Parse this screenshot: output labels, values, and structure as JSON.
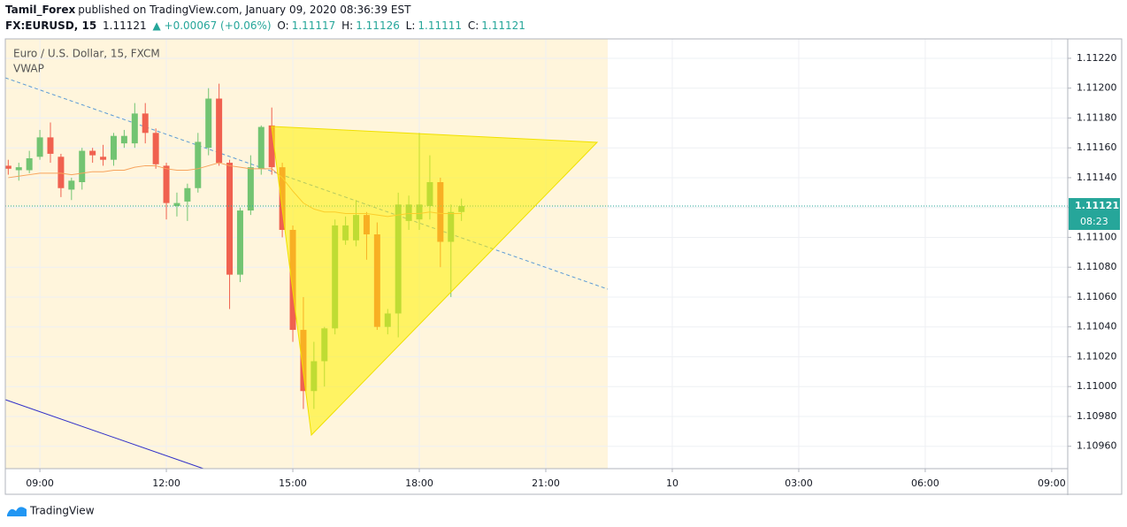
{
  "header": {
    "publisher": "Tamil_Forex",
    "published": "published on TradingView.com, January 09, 2020 08:36:39 EST"
  },
  "symbol_bar": {
    "symbol": "FX:EURUSD, 15",
    "price": "1.11121",
    "change": "▲ +0.00067 (+0.06%)",
    "o_label": "O:",
    "o": "1.11117",
    "h_label": "H:",
    "h": "1.11126",
    "l_label": "L:",
    "l": "1.11111",
    "c_label": "C:",
    "c": "1.11121"
  },
  "chart_data": {
    "type": "candlestick",
    "title": "Euro / U.S. Dollar, 15, FXCM",
    "x": [
      8.25,
      8.5,
      8.75,
      9,
      9.25,
      9.5,
      9.75,
      10,
      10.25,
      10.5,
      10.75,
      11,
      11.25,
      11.5,
      11.75,
      12,
      12.25,
      12.5,
      12.75,
      13,
      13.25,
      13.5,
      13.75,
      14,
      14.25,
      14.5,
      14.75,
      15,
      15.25,
      15.5,
      15.75,
      16,
      16.25,
      16.5,
      16.75,
      17,
      17.25,
      17.5,
      17.75,
      18,
      18.25,
      18.5,
      18.75,
      19
    ],
    "open": [
      1.11148,
      1.11145,
      1.11145,
      1.11154,
      1.11167,
      1.11154,
      1.11132,
      1.11137,
      1.11158,
      1.11154,
      1.11152,
      1.11163,
      1.11163,
      1.11183,
      1.1117,
      1.11148,
      1.11121,
      1.11124,
      1.11133,
      1.1116,
      1.11193,
      1.1115,
      1.11075,
      1.11118,
      1.11146,
      1.11175,
      1.11147,
      1.11105,
      1.11038,
      1.10997,
      1.11017,
      1.11039,
      1.11098,
      1.11098,
      1.11115,
      1.11102,
      1.1104,
      1.11049,
      1.11111,
      1.11112,
      1.11121,
      1.11137,
      1.11097,
      1.11117
    ],
    "high": [
      1.11152,
      1.1115,
      1.11158,
      1.11172,
      1.11177,
      1.11156,
      1.1114,
      1.1116,
      1.1116,
      1.11162,
      1.1117,
      1.11172,
      1.1119,
      1.1119,
      1.11173,
      1.1115,
      1.1113,
      1.11136,
      1.1117,
      1.112,
      1.11203,
      1.11152,
      1.1112,
      1.11155,
      1.11175,
      1.11187,
      1.1115,
      1.11108,
      1.1106,
      1.1103,
      1.1104,
      1.11112,
      1.11114,
      1.11125,
      1.11117,
      1.1111,
      1.11052,
      1.1113,
      1.11128,
      1.1117,
      1.11155,
      1.1114,
      1.11122,
      1.11126
    ],
    "low": [
      1.11142,
      1.11138,
      1.11143,
      1.11152,
      1.1115,
      1.11127,
      1.11125,
      1.11132,
      1.1115,
      1.11148,
      1.11148,
      1.1116,
      1.1116,
      1.11163,
      1.11146,
      1.11112,
      1.11114,
      1.11111,
      1.1113,
      1.11155,
      1.11148,
      1.11052,
      1.1107,
      1.11115,
      1.11142,
      1.11142,
      1.111,
      1.1103,
      1.10985,
      1.10985,
      1.11,
      1.11035,
      1.11095,
      1.11094,
      1.11085,
      1.11038,
      1.11035,
      1.11033,
      1.11105,
      1.11105,
      1.11112,
      1.1108,
      1.1106,
      1.11111
    ],
    "close": [
      1.11146,
      1.11147,
      1.11153,
      1.11167,
      1.11156,
      1.11133,
      1.11138,
      1.11158,
      1.11155,
      1.11152,
      1.11168,
      1.11168,
      1.11183,
      1.1117,
      1.11149,
      1.11123,
      1.11123,
      1.11133,
      1.11164,
      1.11193,
      1.1115,
      1.11075,
      1.11118,
      1.11147,
      1.11174,
      1.11147,
      1.11105,
      1.11038,
      1.10997,
      1.11017,
      1.11039,
      1.11108,
      1.11108,
      1.11115,
      1.11102,
      1.1104,
      1.11049,
      1.11122,
      1.11122,
      1.11122,
      1.11137,
      1.11097,
      1.11117,
      1.11121
    ],
    "up_color": "#72c472",
    "down_color": "#f0614f",
    "series": [
      {
        "name": "VWAP",
        "color": "#f7a35c",
        "values": [
          1.1114,
          1.11141,
          1.11142,
          1.11143,
          1.11143,
          1.11143,
          1.11142,
          1.11143,
          1.11144,
          1.11144,
          1.11145,
          1.11145,
          1.11147,
          1.11148,
          1.11148,
          1.11146,
          1.11145,
          1.11145,
          1.11146,
          1.11148,
          1.1115,
          1.11148,
          1.11147,
          1.11146,
          1.11146,
          1.11146,
          1.1114,
          1.11131,
          1.11123,
          1.11119,
          1.11117,
          1.11117,
          1.11116,
          1.11116,
          1.11116,
          1.11115,
          1.11114,
          1.11115,
          1.11116,
          1.11116,
          1.11117,
          1.11116,
          1.11116,
          1.11116
        ]
      }
    ],
    "xlim": [
      8.18,
      33.38
    ],
    "xticks": [
      {
        "value": 9,
        "label": "09:00"
      },
      {
        "value": 12,
        "label": "12:00"
      },
      {
        "value": 15,
        "label": "15:00"
      },
      {
        "value": 18,
        "label": "18:00"
      },
      {
        "value": 21,
        "label": "21:00"
      },
      {
        "value": 24,
        "label": "10"
      },
      {
        "value": 27,
        "label": "03:00"
      },
      {
        "value": 30,
        "label": "06:00"
      },
      {
        "value": 33,
        "label": "09:00"
      }
    ],
    "ylim": [
      1.10945,
      1.11233
    ],
    "yticks": [
      {
        "value": 1.1096,
        "label": "1.10960"
      },
      {
        "value": 1.1098,
        "label": "1.10980"
      },
      {
        "value": 1.11,
        "label": "1.11000"
      },
      {
        "value": 1.1102,
        "label": "1.11020"
      },
      {
        "value": 1.1104,
        "label": "1.11040"
      },
      {
        "value": 1.1106,
        "label": "1.11060"
      },
      {
        "value": 1.1108,
        "label": "1.11080"
      },
      {
        "value": 1.111,
        "label": "1.11100"
      },
      {
        "value": 1.1112,
        "label": "1.11120"
      },
      {
        "value": 1.1114,
        "label": "1.11140"
      },
      {
        "value": 1.1116,
        "label": "1.11160"
      },
      {
        "value": 1.1118,
        "label": "1.11180"
      },
      {
        "value": 1.112,
        "label": "1.11200"
      },
      {
        "value": 1.1122,
        "label": "1.11220"
      }
    ],
    "grid": true,
    "last_price": 1.11121,
    "last_price_color": "#26a69a",
    "countdown": "08:23"
  },
  "footer": {
    "brand": "TradingView"
  }
}
